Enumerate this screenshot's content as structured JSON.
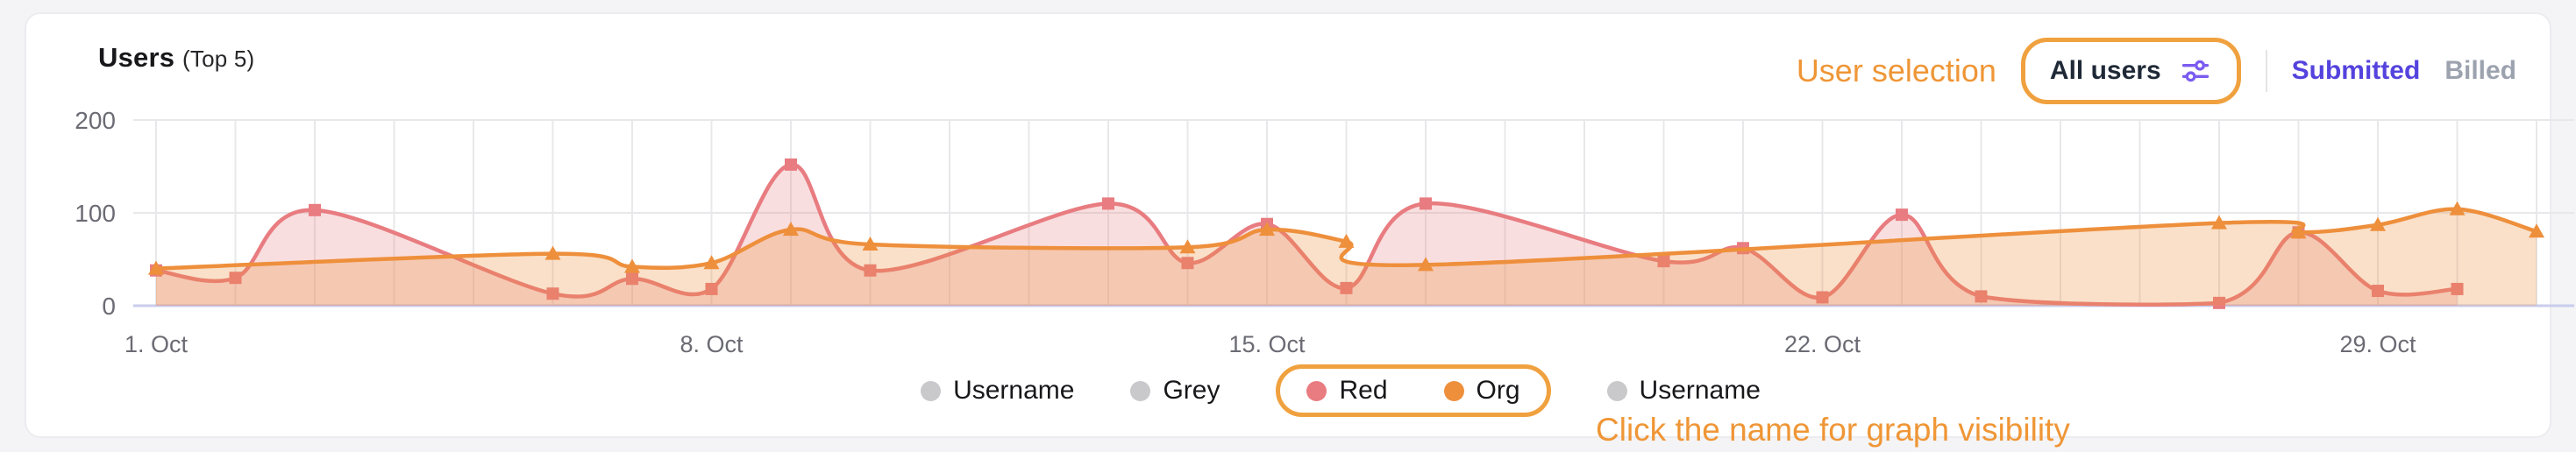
{
  "header": {
    "title": "Users",
    "title_suffix": "(Top 5)"
  },
  "controls": {
    "annotation": "User selection",
    "filter_button": {
      "label": "All users",
      "icon": "sliders-icon",
      "icon_color": "#7b5cf0"
    },
    "tabs": [
      {
        "label": "Submitted",
        "color": "#5443dd",
        "active": true
      },
      {
        "label": "Billed",
        "color": "#9ca3af",
        "active": false
      }
    ]
  },
  "chart_data": {
    "type": "area",
    "x_unit": "day of October",
    "ylim": [
      0,
      210
    ],
    "y_ticks": [
      0,
      100,
      200
    ],
    "x_ticks": [
      {
        "day": 1,
        "label": "1. Oct"
      },
      {
        "day": 8,
        "label": "8. Oct"
      },
      {
        "day": 15,
        "label": "15. Oct"
      },
      {
        "day": 22,
        "label": "22. Oct"
      },
      {
        "day": 29,
        "label": "29. Oct"
      }
    ],
    "grid": {
      "vertical_per_day": true,
      "days": 31
    },
    "series": [
      {
        "name": "Username",
        "color": "#c9c9cc",
        "visible": false,
        "marker": "circle",
        "points": []
      },
      {
        "name": "Grey",
        "color": "#c9c9cc",
        "visible": false,
        "marker": "circle",
        "points": []
      },
      {
        "name": "Red",
        "color": "#e87c80",
        "fill": "rgba(232,124,128,0.25)",
        "visible": true,
        "marker": "square",
        "points": [
          [
            1,
            38
          ],
          [
            2,
            30
          ],
          [
            3,
            103
          ],
          [
            6,
            13
          ],
          [
            7,
            29
          ],
          [
            8,
            18
          ],
          [
            9,
            152
          ],
          [
            10,
            38
          ],
          [
            13,
            110
          ],
          [
            14,
            46
          ],
          [
            15,
            88
          ],
          [
            16,
            19
          ],
          [
            17,
            110
          ],
          [
            20,
            48
          ],
          [
            21,
            62
          ],
          [
            22,
            9
          ],
          [
            23,
            98
          ],
          [
            24,
            10
          ],
          [
            27,
            3
          ],
          [
            28,
            79
          ],
          [
            29,
            16
          ],
          [
            30,
            18
          ]
        ]
      },
      {
        "name": "Org",
        "color": "#ee8f3c",
        "fill": "rgba(238,143,60,0.28)",
        "visible": true,
        "marker": "triangle",
        "points": [
          [
            1,
            40
          ],
          [
            6,
            56
          ],
          [
            7,
            42
          ],
          [
            8,
            46
          ],
          [
            9,
            82
          ],
          [
            10,
            66
          ],
          [
            14,
            63
          ],
          [
            15,
            82
          ],
          [
            16,
            69
          ],
          [
            17,
            44
          ],
          [
            27,
            89
          ],
          [
            28,
            79
          ],
          [
            29,
            87
          ],
          [
            30,
            104
          ],
          [
            31,
            80
          ]
        ]
      },
      {
        "name": "Username",
        "color": "#c9c9cc",
        "visible": false,
        "marker": "circle",
        "points": []
      }
    ],
    "legend_highlight_box": {
      "series_indexes": [
        2,
        3
      ],
      "color": "#f0a13f"
    },
    "legend_annotation": "Click the name for graph visibility"
  }
}
